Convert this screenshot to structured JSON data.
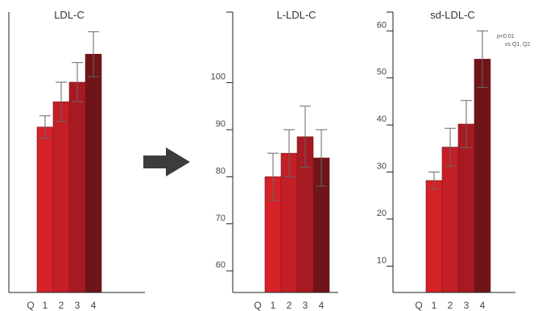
{
  "chart_data": [
    {
      "type": "bar",
      "title": "LDL-C",
      "axis_label": "Q",
      "categories": [
        "1",
        "2",
        "3",
        "4"
      ],
      "values": [
        0.59,
        0.68,
        0.75,
        0.85
      ],
      "error": [
        0.04,
        0.07,
        0.07,
        0.08
      ],
      "ylim": [
        0,
        1
      ],
      "yticks": [],
      "colors": [
        "#d42227",
        "#c41e27",
        "#a81a22",
        "#6f1418"
      ],
      "error_color": "#666666",
      "note": ""
    },
    {
      "type": "bar",
      "title": "L-LDL-C",
      "axis_label": "Q",
      "categories": [
        "1",
        "2",
        "3",
        "4"
      ],
      "values": [
        80,
        85,
        88.5,
        84
      ],
      "error": [
        5,
        5,
        6.5,
        6
      ],
      "ylim": [
        55.4,
        115
      ],
      "yticks": [
        60,
        70,
        80,
        90,
        100
      ],
      "colors": [
        "#d42227",
        "#c41e27",
        "#a81a22",
        "#6f1418"
      ],
      "error_color": "#666666",
      "note": ""
    },
    {
      "type": "bar",
      "title": "sd-LDL-C",
      "axis_label": "Q",
      "categories": [
        "1",
        "2",
        "3",
        "4"
      ],
      "values": [
        28.2,
        35.3,
        40.2,
        54
      ],
      "error": [
        1.8,
        4,
        5,
        6
      ],
      "ylim": [
        4.4,
        64
      ],
      "yticks": [
        10,
        20,
        30,
        40,
        50,
        60
      ],
      "colors": [
        "#d42227",
        "#c41e27",
        "#a81a22",
        "#6f1418"
      ],
      "error_color": "#666666",
      "note": "p<0.01\nvs Q1, Q2"
    }
  ],
  "arrow": {
    "icon": "right-arrow-icon",
    "color": "#3c3c3c"
  }
}
